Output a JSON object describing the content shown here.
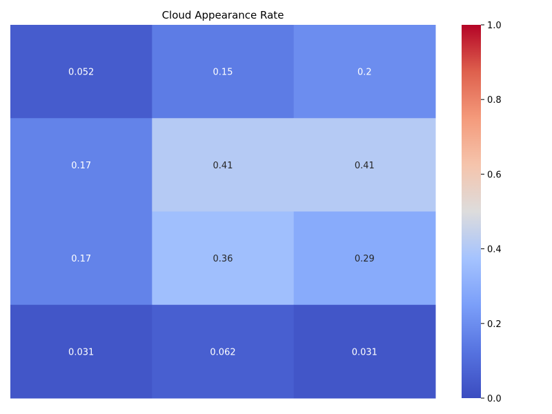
{
  "chart_data": {
    "type": "heatmap",
    "title": "Cloud Appearance Rate",
    "xlabel": "",
    "ylabel": "",
    "rows": 4,
    "cols": 3,
    "values": [
      [
        0.052,
        0.15,
        0.2
      ],
      [
        0.17,
        0.41,
        0.41
      ],
      [
        0.17,
        0.36,
        0.29
      ],
      [
        0.031,
        0.062,
        0.031
      ]
    ],
    "value_labels": [
      [
        "0.052",
        "0.15",
        "0.2"
      ],
      [
        "0.17",
        "0.41",
        "0.41"
      ],
      [
        "0.17",
        "0.36",
        "0.29"
      ],
      [
        "0.031",
        "0.062",
        "0.031"
      ]
    ],
    "colormap": "coolwarm",
    "vmin": 0.0,
    "vmax": 1.0,
    "colorbar": {
      "ticks": [
        0.0,
        0.2,
        0.4,
        0.6,
        0.8,
        1.0
      ],
      "tick_labels": [
        "0.0",
        "0.2",
        "0.4",
        "0.6",
        "0.8",
        "1.0"
      ]
    },
    "grid": false
  }
}
